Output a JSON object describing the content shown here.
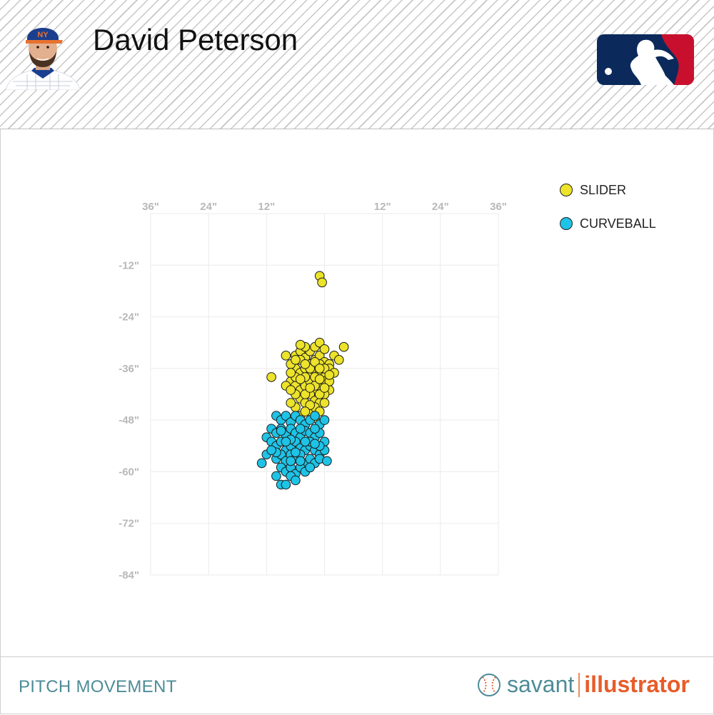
{
  "header": {
    "player_name": "David Peterson",
    "avatar_icon": "player-headshot",
    "logo_icon": "mlb-logo"
  },
  "footer": {
    "title": "PITCH MOVEMENT",
    "brand_savant": "savant",
    "brand_illustrator": "illustrator",
    "brand_icon": "baseball-icon"
  },
  "colors": {
    "slider": "#ece32a",
    "curveball": "#1ec3e6",
    "accent_teal": "#4d8c97",
    "accent_orange": "#e85c2a"
  },
  "chart_data": {
    "type": "scatter",
    "x_ticks": [
      "36\"",
      "24\"",
      "12\"",
      "",
      "12\"",
      "24\"",
      "36\""
    ],
    "y_ticks": [
      "-12\"",
      "-24\"",
      "-36\"",
      "-48\"",
      "-60\"",
      "-72\"",
      "-84\""
    ],
    "xlim": [
      -36,
      36
    ],
    "ylim": [
      -84,
      0
    ],
    "grid": true,
    "legend_position": "top-right",
    "series": [
      {
        "name": "SLIDER",
        "color": "#ece32a",
        "points": [
          [
            -1,
            -14.5
          ],
          [
            -0.5,
            -16
          ],
          [
            4,
            -31
          ],
          [
            -11,
            -38
          ],
          [
            -7,
            -39
          ],
          [
            -6,
            -33
          ],
          [
            -5,
            -32
          ],
          [
            -4,
            -33.5
          ],
          [
            -3,
            -35
          ],
          [
            -2,
            -34
          ],
          [
            -1,
            -33
          ],
          [
            0,
            -34.5
          ],
          [
            1,
            -35
          ],
          [
            2,
            -33
          ],
          [
            3,
            -34
          ],
          [
            -6,
            -36
          ],
          [
            -5,
            -37
          ],
          [
            -4,
            -36
          ],
          [
            -3,
            -37.5
          ],
          [
            -2,
            -36.5
          ],
          [
            -1,
            -37
          ],
          [
            0,
            -38
          ],
          [
            1,
            -36
          ],
          [
            -7,
            -35
          ],
          [
            -8,
            -33
          ],
          [
            -6,
            -40
          ],
          [
            -5,
            -41
          ],
          [
            -4,
            -40
          ],
          [
            -3,
            -39
          ],
          [
            -2,
            -41
          ],
          [
            -1,
            -40
          ],
          [
            0,
            -39
          ],
          [
            1,
            -41
          ],
          [
            -5,
            -43
          ],
          [
            -4,
            -44
          ],
          [
            -3,
            -42
          ],
          [
            -2,
            -43.5
          ],
          [
            -1,
            -44
          ],
          [
            0,
            -42
          ],
          [
            -6,
            -45
          ],
          [
            -3,
            -46
          ],
          [
            -2,
            -45
          ],
          [
            -1,
            -46
          ],
          [
            -4,
            -38
          ],
          [
            -3,
            -36
          ],
          [
            -2,
            -38
          ],
          [
            -1,
            -35
          ],
          [
            0,
            -36
          ],
          [
            -5,
            -34
          ],
          [
            -6,
            -38
          ],
          [
            -7,
            -37
          ],
          [
            -3,
            -32
          ],
          [
            -2,
            -31
          ],
          [
            -1,
            -30
          ],
          [
            -4,
            -31
          ],
          [
            -5,
            -30.5
          ],
          [
            0,
            -31.5
          ],
          [
            2,
            -37
          ],
          [
            1,
            -39
          ],
          [
            -2,
            -40
          ],
          [
            -4,
            -42
          ],
          [
            -1,
            -42
          ],
          [
            -6,
            -42
          ],
          [
            0,
            -44
          ],
          [
            -3,
            -44.5
          ],
          [
            -5,
            -47
          ],
          [
            -7,
            -44
          ],
          [
            -8,
            -40
          ],
          [
            -2,
            -47.5
          ],
          [
            -4,
            -46
          ],
          [
            1,
            -37.5
          ],
          [
            -1,
            -38.5
          ],
          [
            -3,
            -40.5
          ],
          [
            -2,
            -34.5
          ],
          [
            -4,
            -35
          ],
          [
            -6,
            -34
          ],
          [
            0,
            -40.5
          ],
          [
            -5,
            -38.5
          ],
          [
            -7,
            -41
          ],
          [
            -1,
            -36
          ]
        ]
      },
      {
        "name": "CURVEBALL",
        "color": "#1ec3e6",
        "points": [
          [
            -10,
            -47
          ],
          [
            -9,
            -48
          ],
          [
            -8,
            -47
          ],
          [
            -7,
            -48.5
          ],
          [
            -6,
            -47
          ],
          [
            -5,
            -48
          ],
          [
            -4,
            -49
          ],
          [
            -3,
            -48
          ],
          [
            -2,
            -47
          ],
          [
            -1,
            -49
          ],
          [
            0,
            -48
          ],
          [
            -11,
            -50
          ],
          [
            -10,
            -51
          ],
          [
            -9,
            -50
          ],
          [
            -8,
            -51.5
          ],
          [
            -7,
            -50
          ],
          [
            -6,
            -51
          ],
          [
            -5,
            -52
          ],
          [
            -4,
            -50.5
          ],
          [
            -3,
            -51
          ],
          [
            -2,
            -52
          ],
          [
            -1,
            -51
          ],
          [
            0,
            -53
          ],
          [
            -12,
            -52
          ],
          [
            -11,
            -53
          ],
          [
            -10,
            -54
          ],
          [
            -9,
            -53
          ],
          [
            -8,
            -55
          ],
          [
            -7,
            -54
          ],
          [
            -6,
            -53
          ],
          [
            -5,
            -54.5
          ],
          [
            -4,
            -55
          ],
          [
            -3,
            -54
          ],
          [
            -2,
            -55
          ],
          [
            -1,
            -56
          ],
          [
            0,
            -55
          ],
          [
            -12,
            -56
          ],
          [
            -10,
            -57
          ],
          [
            -9,
            -56
          ],
          [
            -8,
            -57.5
          ],
          [
            -7,
            -56
          ],
          [
            -6,
            -57
          ],
          [
            -5,
            -56
          ],
          [
            -4,
            -58
          ],
          [
            -3,
            -57
          ],
          [
            -2,
            -58
          ],
          [
            -1,
            -57
          ],
          [
            0.5,
            -57.5
          ],
          [
            -13,
            -58
          ],
          [
            -9,
            -59
          ],
          [
            -8,
            -60
          ],
          [
            -7,
            -59
          ],
          [
            -6,
            -60.5
          ],
          [
            -5,
            -59
          ],
          [
            -4,
            -60
          ],
          [
            -10,
            -61
          ],
          [
            -9,
            -63
          ],
          [
            -8,
            -63
          ],
          [
            -7,
            -61
          ],
          [
            -6,
            -62
          ],
          [
            -9,
            -50.5
          ],
          [
            -7,
            -52.5
          ],
          [
            -5,
            -50
          ],
          [
            -3,
            -53
          ],
          [
            -1,
            -54
          ],
          [
            -6,
            -55.5
          ],
          [
            -4,
            -53
          ],
          [
            -2,
            -50
          ],
          [
            -8,
            -53
          ],
          [
            -10,
            -55.5
          ],
          [
            -5,
            -57.5
          ],
          [
            -3,
            -59
          ],
          [
            -7,
            -57.5
          ],
          [
            -11,
            -55
          ],
          [
            -2,
            -53.5
          ]
        ]
      }
    ]
  }
}
